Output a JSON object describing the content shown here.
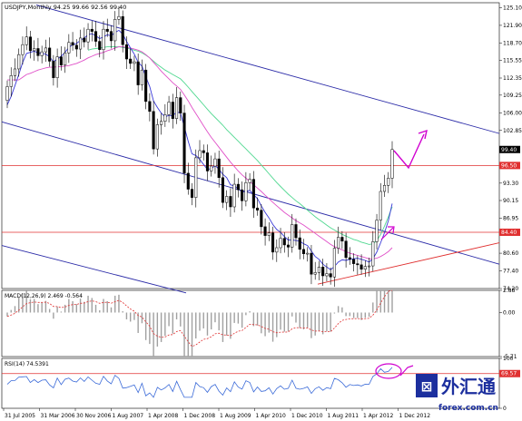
{
  "header": {
    "symbol": "USDJPY,Monthly",
    "ohlc": "94.25 99.66 92.56 99.40"
  },
  "macd_label": "MACD(12,26,9) 2.469 -0.564",
  "rsi_label": "RSI(14) 74.5391",
  "watermark": {
    "brand": "外汇通",
    "url": "forex.com.cn"
  },
  "colors": {
    "channel": "#2c2ca8",
    "support": "#e03030",
    "ma_fast": "#3a3ad8",
    "ma_mid": "#e050c8",
    "ma_slow": "#50d890",
    "arrow": "#d000d0",
    "level_tag": "#e03030",
    "price_tag": "#000000"
  },
  "chart_data": {
    "type": "candlestick",
    "title": "USDJPY,Monthly",
    "ylim": [
      74.2,
      126.0
    ],
    "y_ticks": [
      "125.10",
      "121.90",
      "118.70",
      "115.55",
      "112.35",
      "109.25",
      "106.00",
      "102.85",
      "99.40",
      "96.50",
      "93.30",
      "90.15",
      "86.95",
      "84.40",
      "80.60",
      "77.40",
      "74.20"
    ],
    "x_ticks": [
      "31 Jul 2005",
      "31 Mar 2006",
      "30 Nov 2006",
      "1 Aug 2007",
      "1 Apr 2008",
      "1 Dec 2008",
      "1 Aug 2009",
      "1 Apr 2010",
      "1 Dec 2010",
      "1 Aug 2011",
      "1 Apr 2012",
      "1 Dec 2012"
    ],
    "current_price": "99.40",
    "horizontal_levels": [
      {
        "label": "96.50",
        "value": 96.5
      },
      {
        "label": "84.40",
        "value": 84.4
      }
    ],
    "closes": [
      110.8,
      112.8,
      114.0,
      116.6,
      118.4,
      119.8,
      117.3,
      117.7,
      116.4,
      117.1,
      117.8,
      115.4,
      112.4,
      116.2,
      114.7,
      116.9,
      118.8,
      118.3,
      117.6,
      119.6,
      118.9,
      121.2,
      120.8,
      119.0,
      117.5,
      121.2,
      120.8,
      119.1,
      123.0,
      123.5,
      118.4,
      115.8,
      115.0,
      115.3,
      111.1,
      113.8,
      108.1,
      106.3,
      99.5,
      103.9,
      104.5,
      105.7,
      108.0,
      105.0,
      108.8,
      106.0,
      95.1,
      92.2,
      90.7,
      97.9,
      99.2,
      98.8,
      95.5,
      96.4,
      97.7,
      94.3,
      89.8,
      90.9,
      89.0,
      93.1,
      92.1,
      90.1,
      93.4,
      94.0,
      88.8,
      88.4,
      85.4,
      83.8,
      84.3,
      80.8,
      81.6,
      83.3,
      82.1,
      81.7,
      85.8,
      83.4,
      81.3,
      80.5,
      80.6,
      76.8,
      77.1,
      78.1,
      76.5,
      76.9,
      76.3,
      81.5,
      83.5,
      82.8,
      79.8,
      79.5,
      78.7,
      78.5,
      77.7,
      78.2,
      78.3,
      82.7,
      86.6,
      91.8,
      92.9,
      94.2,
      99.4
    ],
    "ma_fast": [
      107.5,
      109.0,
      111.0,
      113.0,
      115.2,
      116.8,
      117.0,
      117.2,
      116.9,
      116.8,
      116.7,
      116.2,
      115.3,
      115.8,
      116.3,
      117.0,
      117.9,
      118.4,
      118.6,
      119.2,
      119.6,
      120.2,
      120.4,
      120.0,
      119.5,
      119.8,
      120.2,
      120.0,
      120.6,
      121.0,
      120.3,
      119.0,
      117.8,
      116.7,
      115.2,
      114.5,
      112.6,
      110.8,
      108.2,
      107.0,
      106.0,
      105.3,
      105.6,
      105.5,
      106.2,
      106.0,
      103.5,
      100.9,
      98.6,
      98.3,
      97.6,
      96.7,
      95.8,
      95.9,
      96.5,
      95.8,
      94.9,
      94.3,
      93.0,
      92.8,
      92.3,
      91.7,
      91.8,
      92.0,
      91.2,
      90.5,
      89.2,
      88.0,
      87.0,
      85.8,
      84.9,
      84.4,
      83.6,
      83.0,
      83.0,
      82.9,
      82.8,
      82.3,
      82.0,
      81.0,
      80.0,
      79.5,
      78.6,
      78.1,
      77.6,
      78.2,
      79.0,
      79.4,
      79.3,
      79.5,
      79.6,
      79.7,
      79.5,
      79.3,
      79.0,
      79.6,
      80.8,
      82.5,
      84.3,
      86.5,
      89.6
    ],
    "ma_mid": [
      112.0,
      112.0,
      112.0,
      112.0,
      112.5,
      113.0,
      113.2,
      113.5,
      113.8,
      114.0,
      114.2,
      114.3,
      114.3,
      114.4,
      114.4,
      114.5,
      114.6,
      114.8,
      115.0,
      115.3,
      115.6,
      116.0,
      116.3,
      116.6,
      116.8,
      117.0,
      117.3,
      117.5,
      117.8,
      118.0,
      118.0,
      117.9,
      117.8,
      117.6,
      117.4,
      117.1,
      116.6,
      116.0,
      115.2,
      114.4,
      113.6,
      112.9,
      112.2,
      111.5,
      110.9,
      110.3,
      109.3,
      108.2,
      107.0,
      105.9,
      104.8,
      103.7,
      102.6,
      101.6,
      100.7,
      99.8,
      98.9,
      98.0,
      97.1,
      96.3,
      95.5,
      94.8,
      94.2,
      93.6,
      93.0,
      92.4,
      91.8,
      91.1,
      90.5,
      89.8,
      89.2,
      88.6,
      88.0,
      87.5,
      87.0,
      86.5,
      86.1,
      85.7,
      85.2,
      84.7,
      84.2,
      83.7,
      83.2,
      82.7,
      82.2,
      81.8,
      81.5,
      81.2,
      80.9,
      80.6,
      80.4,
      80.2,
      80.0,
      79.8,
      79.6,
      79.6,
      79.7,
      80.0,
      80.4,
      80.9,
      81.6
    ],
    "ma_slow": [
      null,
      null,
      null,
      null,
      null,
      null,
      null,
      null,
      null,
      null,
      null,
      null,
      null,
      null,
      null,
      null,
      null,
      null,
      null,
      null,
      null,
      117.4,
      117.6,
      117.7,
      117.8,
      117.9,
      118.0,
      118.0,
      118.0,
      118.0,
      117.9,
      117.8,
      117.6,
      117.4,
      117.2,
      116.9,
      116.5,
      116.0,
      115.4,
      114.8,
      114.3,
      113.8,
      113.4,
      113.0,
      112.6,
      112.2,
      111.5,
      110.7,
      109.9,
      109.1,
      108.3,
      107.5,
      106.7,
      105.9,
      105.2,
      104.5,
      103.8,
      103.0,
      102.3,
      101.6,
      100.9,
      100.2,
      99.5,
      98.8,
      98.1,
      97.4,
      96.6,
      95.8,
      95.0,
      94.2,
      93.4,
      92.7,
      92.0,
      91.3,
      90.7,
      90.1,
      89.6,
      89.0,
      88.4,
      87.8,
      87.2,
      86.7,
      86.2,
      85.7,
      85.2,
      84.8,
      84.4,
      84.0,
      83.7,
      83.4,
      83.1,
      82.9,
      82.6,
      82.4,
      82.2,
      82.3,
      82.9,
      84.0,
      85.5,
      87.2,
      89.0
    ],
    "indicators": [
      {
        "name": "MACD(12,26,9)",
        "values_shown": [
          "2.469",
          "-0.564"
        ],
        "ylim": [
          -5.71,
          2.88
        ],
        "y_ticks": [
          "2.88",
          "0.00",
          "-5.71"
        ]
      },
      {
        "name": "RSI(14)",
        "value_shown": "74.5391",
        "ylim": [
          0,
          100
        ],
        "y_ticks": [
          "100",
          "69.57",
          "0"
        ]
      }
    ]
  }
}
